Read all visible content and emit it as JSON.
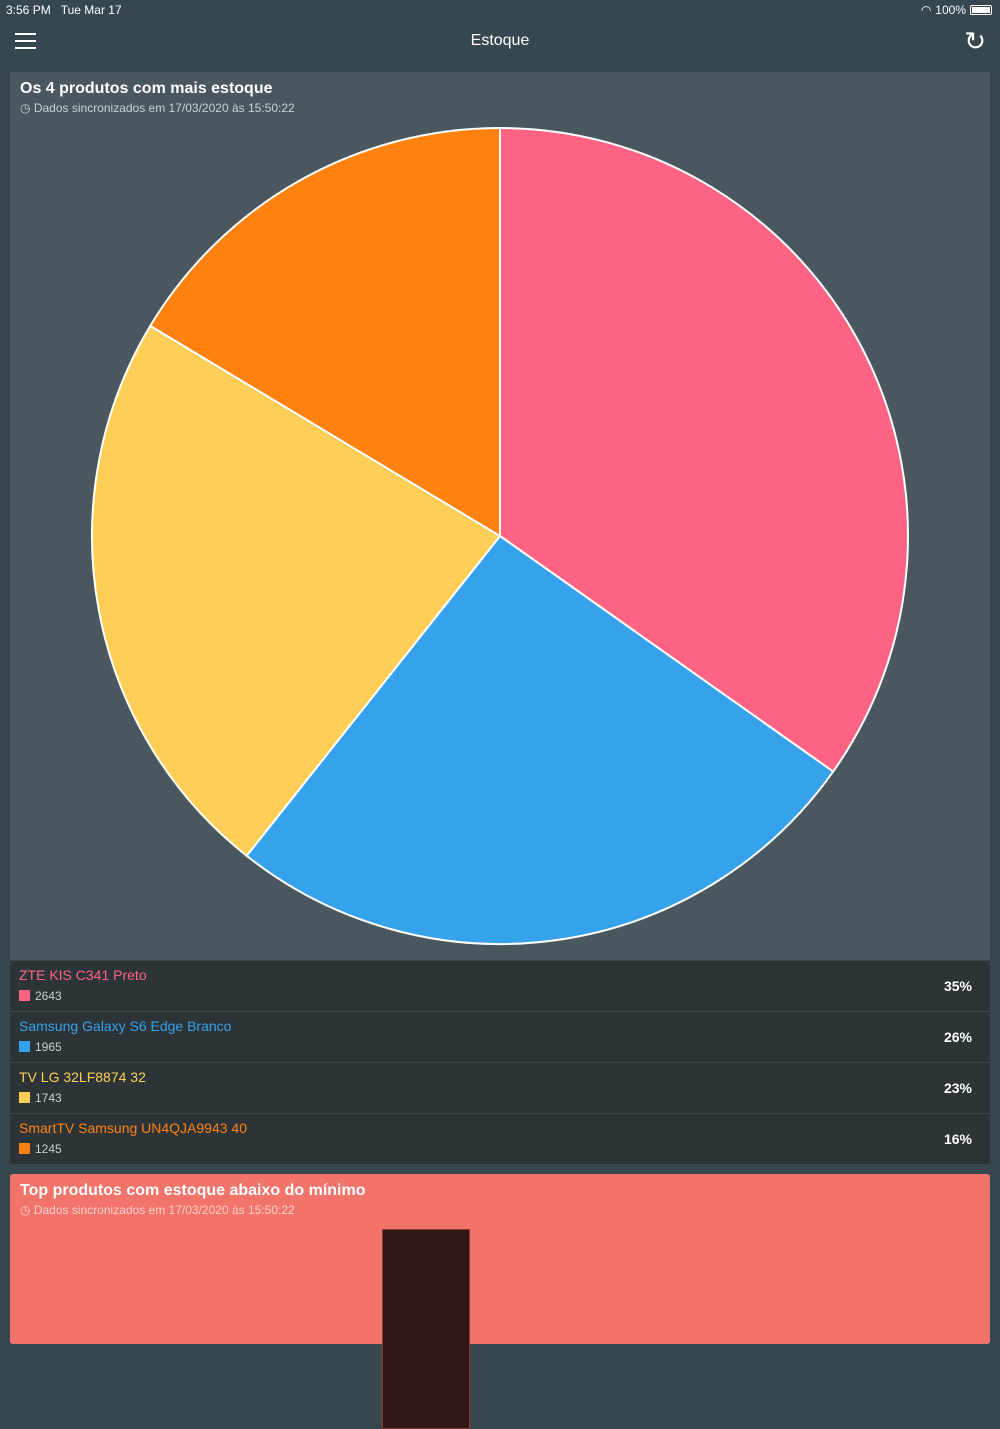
{
  "status": {
    "time": "3:56 PM",
    "date": "Tue Mar 17",
    "battery": "100%"
  },
  "nav": {
    "title": "Estoque"
  },
  "card1": {
    "title": "Os 4 produtos com mais estoque",
    "sync": "Dados sincronizados em 17/03/2020 às 15:50:22"
  },
  "chart_data": {
    "type": "pie",
    "categories": [
      "ZTE KIS C341 Preto",
      "Samsung Galaxy S6 Edge Branco",
      "TV LG 32LF8874 32",
      "SmartTV Samsung UN4QJA9943 40"
    ],
    "values": [
      2643,
      1965,
      1743,
      1245
    ],
    "percent_labels": [
      "35%",
      "26%",
      "23%",
      "16%"
    ],
    "colors": [
      "#ff6384",
      "#36a2eb",
      "#ffce56",
      "#ff8210"
    ],
    "legend": "bottom"
  },
  "card2": {
    "title": "Top produtos com estoque abaixo do mínimo",
    "sync": "Dados sincronizados em 17/03/2020 às 15:50:22"
  }
}
